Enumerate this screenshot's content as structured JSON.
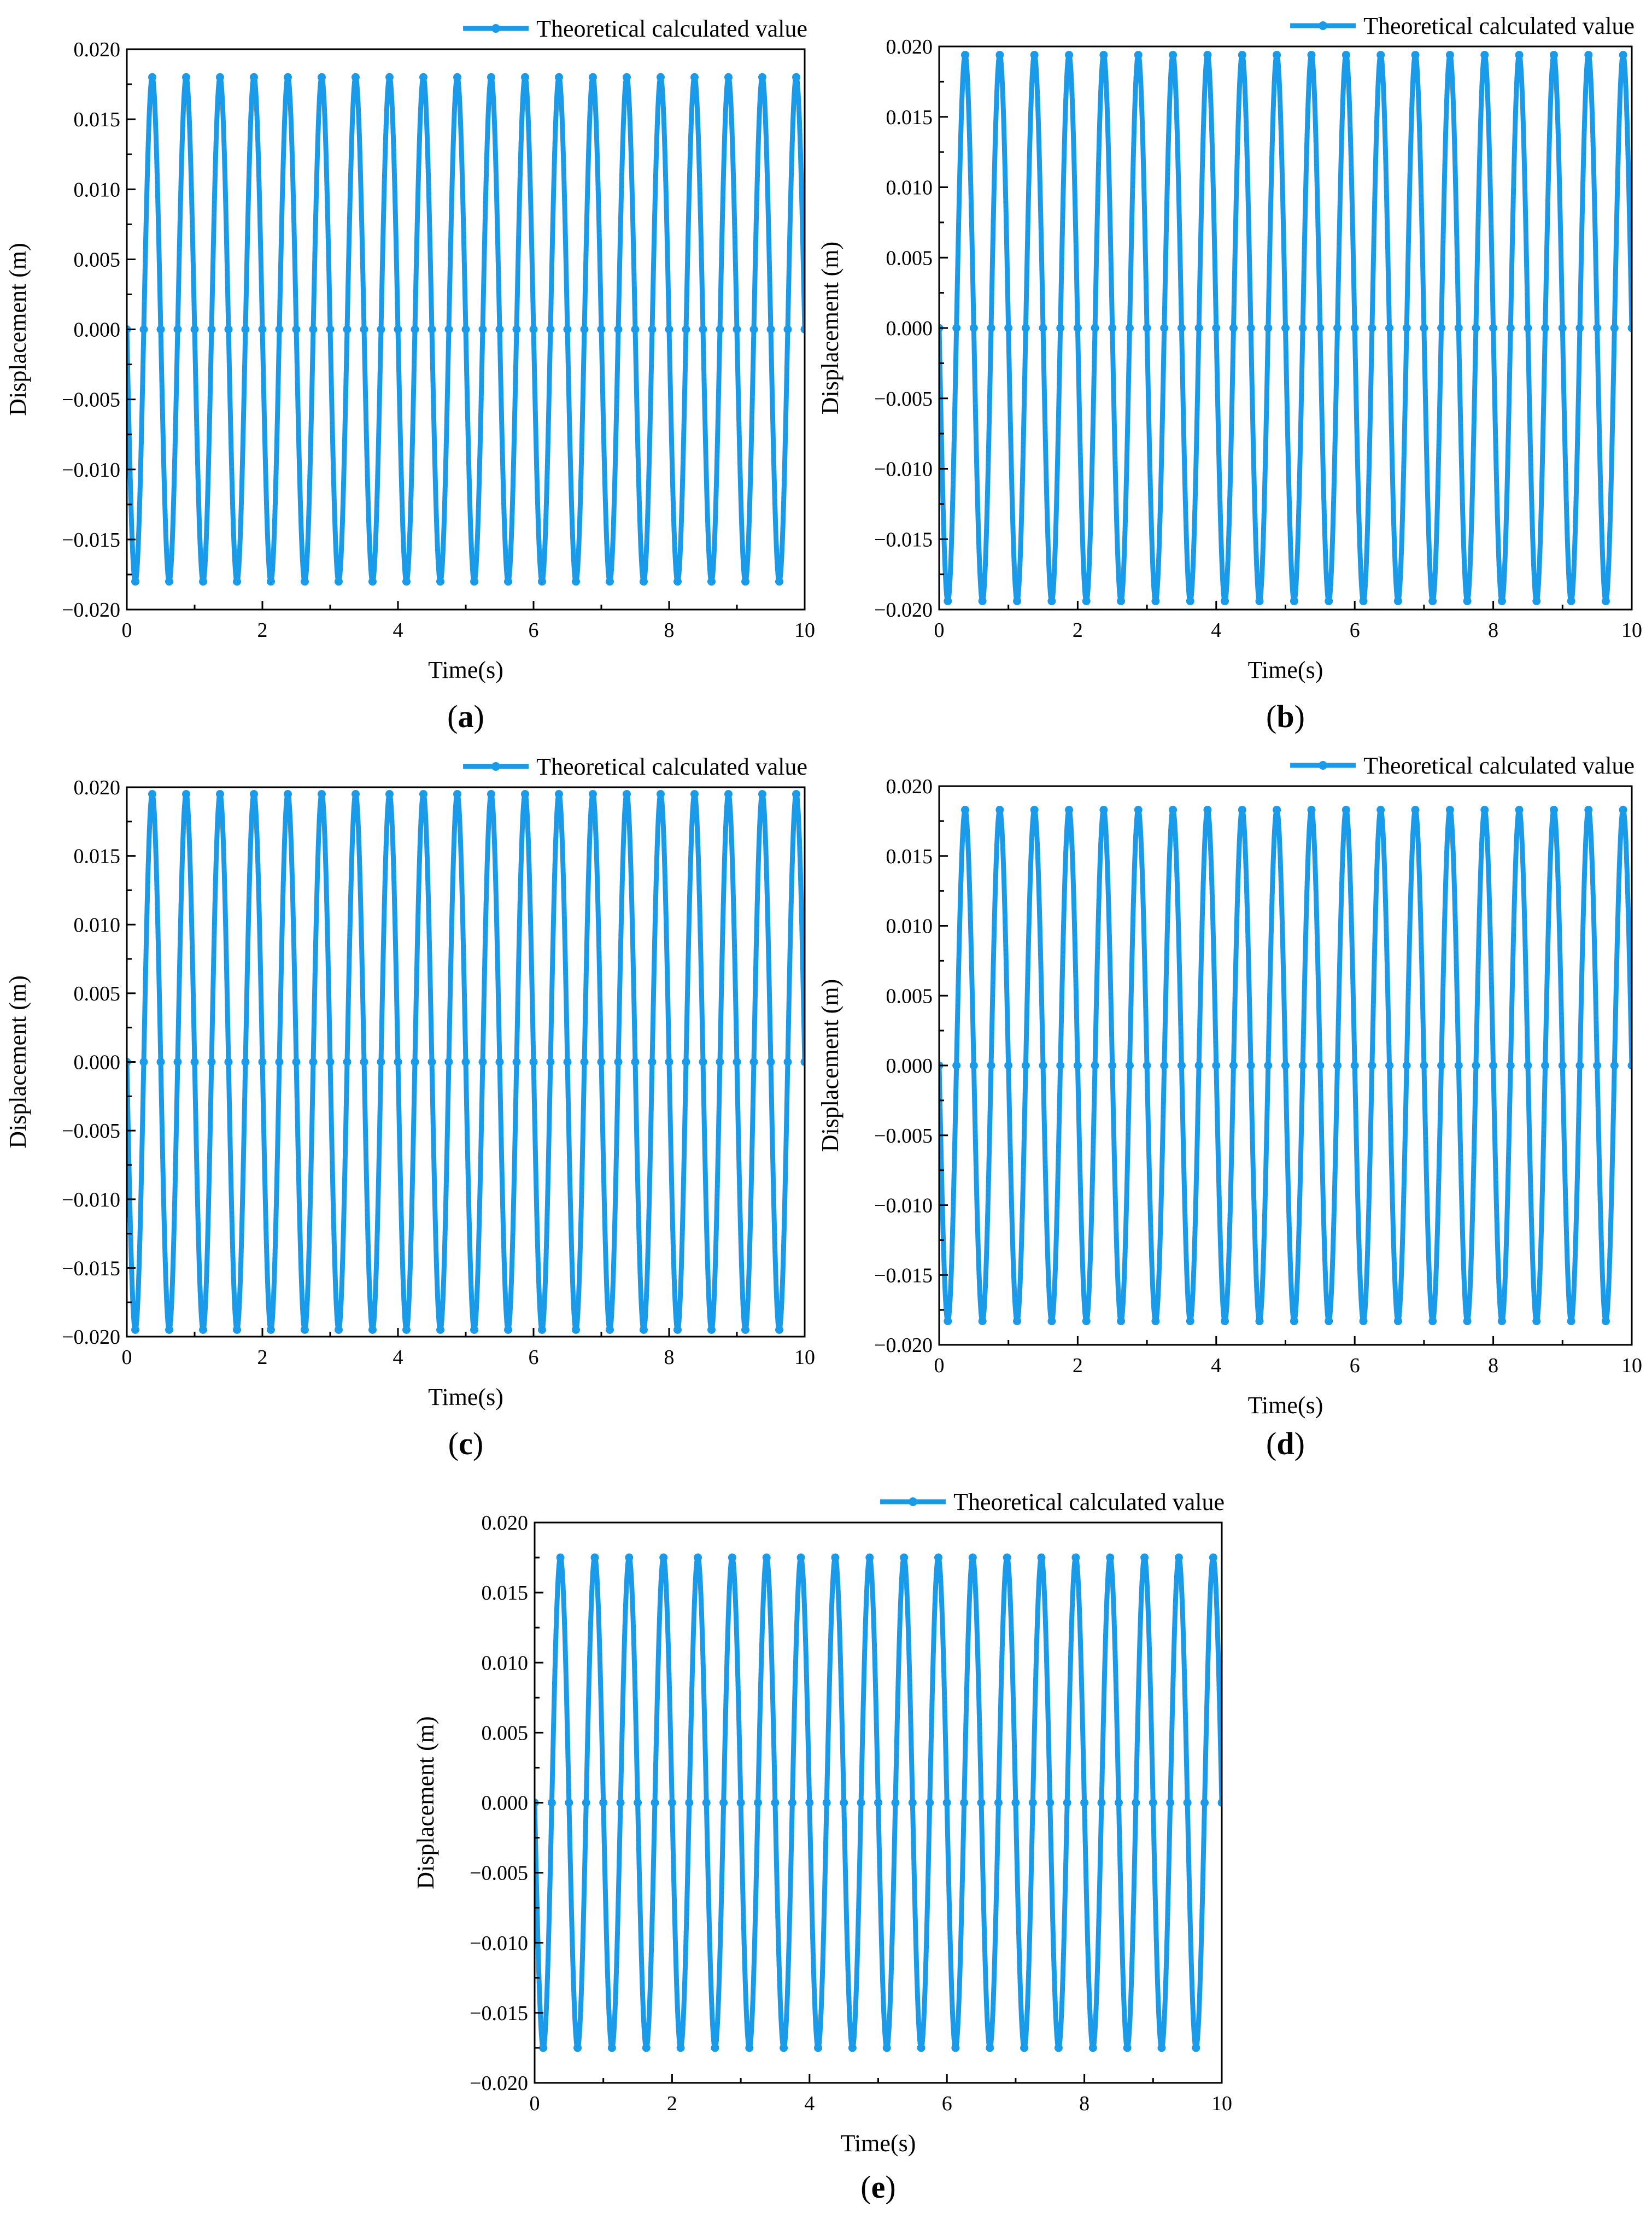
{
  "figure": {
    "series_color": "#1a9bea",
    "axis_color": "#000000"
  },
  "chart_data": [
    {
      "panel": "a",
      "caption_open": "(",
      "caption_letter": "a",
      "caption_close": ")",
      "type": "line",
      "xlabel": "Time(s)",
      "ylabel": "Displacement (m)",
      "xlim": [
        0,
        10
      ],
      "ylim": [
        -0.02,
        0.02
      ],
      "xticks": [
        0,
        2,
        4,
        6,
        8,
        10
      ],
      "xtick_labels": [
        "0",
        "2",
        "4",
        "6",
        "8",
        "10"
      ],
      "yticks": [
        -0.02,
        -0.015,
        -0.01,
        -0.005,
        0,
        0.005,
        0.01,
        0.015,
        0.02
      ],
      "ytick_labels": [
        "−0.020",
        "−0.015",
        "−0.010",
        "−0.005",
        "0.000",
        "0.005",
        "0.010",
        "0.015",
        "0.020"
      ],
      "legend": "top-right",
      "grid": false,
      "series": [
        {
          "name": "Theoretical calculated value",
          "amplitude": 0.018,
          "period": 0.5,
          "t0": 0.125,
          "markers": "every quarter period (peaks, troughs, zero crossings)"
        }
      ]
    },
    {
      "panel": "b",
      "caption_open": "(",
      "caption_letter": "b",
      "caption_close": ")",
      "type": "line",
      "xlabel": "Time(s)",
      "ylabel": "Displacement (m)",
      "xlim": [
        0,
        10
      ],
      "ylim": [
        -0.02,
        0.02
      ],
      "xticks": [
        0,
        2,
        4,
        6,
        8,
        10
      ],
      "xtick_labels": [
        "0",
        "2",
        "4",
        "6",
        "8",
        "10"
      ],
      "yticks": [
        -0.02,
        -0.015,
        -0.01,
        -0.005,
        0,
        0.005,
        0.01,
        0.015,
        0.02
      ],
      "ytick_labels": [
        "−0.020",
        "−0.015",
        "−0.010",
        "−0.005",
        "0.000",
        "0.005",
        "0.010",
        "0.015",
        "0.020"
      ],
      "legend": "top-right",
      "grid": false,
      "series": [
        {
          "name": "Theoretical calculated value",
          "amplitude": 0.0194,
          "period": 0.5,
          "t0": 0.125,
          "markers": "every quarter period (peaks, troughs, zero crossings)"
        }
      ]
    },
    {
      "panel": "c",
      "caption_open": "(",
      "caption_letter": "c",
      "caption_close": ")",
      "type": "line",
      "xlabel": "Time(s)",
      "ylabel": "Displacement (m)",
      "xlim": [
        0,
        10
      ],
      "ylim": [
        -0.02,
        0.02
      ],
      "xticks": [
        0,
        2,
        4,
        6,
        8,
        10
      ],
      "xtick_labels": [
        "0",
        "2",
        "4",
        "6",
        "8",
        "10"
      ],
      "yticks": [
        -0.02,
        -0.015,
        -0.01,
        -0.005,
        0,
        0.005,
        0.01,
        0.015,
        0.02
      ],
      "ytick_labels": [
        "−0.020",
        "−0.015",
        "−0.010",
        "−0.005",
        "0.000",
        "0.005",
        "0.010",
        "0.015",
        "0.020"
      ],
      "legend": "top-right",
      "grid": false,
      "series": [
        {
          "name": "Theoretical calculated value",
          "amplitude": 0.0195,
          "period": 0.5,
          "t0": 0.125,
          "markers": "every quarter period (peaks, troughs, zero crossings)"
        }
      ]
    },
    {
      "panel": "d",
      "caption_open": "(",
      "caption_letter": "d",
      "caption_close": ")",
      "type": "line",
      "xlabel": "Time(s)",
      "ylabel": "Displacement (m)",
      "xlim": [
        0,
        10
      ],
      "ylim": [
        -0.02,
        0.02
      ],
      "xticks": [
        0,
        2,
        4,
        6,
        8,
        10
      ],
      "xtick_labels": [
        "0",
        "2",
        "4",
        "6",
        "8",
        "10"
      ],
      "yticks": [
        -0.02,
        -0.015,
        -0.01,
        -0.005,
        0,
        0.005,
        0.01,
        0.015,
        0.02
      ],
      "ytick_labels": [
        "−0.020",
        "−0.015",
        "−0.010",
        "−0.005",
        "0.000",
        "0.005",
        "0.010",
        "0.015",
        "0.020"
      ],
      "legend": "top-right",
      "grid": false,
      "series": [
        {
          "name": "Theoretical calculated value",
          "amplitude": 0.0183,
          "period": 0.5,
          "t0": 0.125,
          "markers": "every quarter period (peaks, troughs, zero crossings)"
        }
      ]
    },
    {
      "panel": "e",
      "caption_open": "(",
      "caption_letter": "e",
      "caption_close": ")",
      "type": "line",
      "xlabel": "Time(s)",
      "ylabel": "Displacement (m)",
      "xlim": [
        0,
        10
      ],
      "ylim": [
        -0.02,
        0.02
      ],
      "xticks": [
        0,
        2,
        4,
        6,
        8,
        10
      ],
      "xtick_labels": [
        "0",
        "2",
        "4",
        "6",
        "8",
        "10"
      ],
      "yticks": [
        -0.02,
        -0.015,
        -0.01,
        -0.005,
        0,
        0.005,
        0.01,
        0.015,
        0.02
      ],
      "ytick_labels": [
        "−0.020",
        "−0.015",
        "−0.010",
        "−0.005",
        "0.000",
        "0.005",
        "0.010",
        "0.015",
        "0.020"
      ],
      "legend": "top-right",
      "grid": false,
      "series": [
        {
          "name": "Theoretical calculated value",
          "amplitude": 0.0175,
          "period": 0.5,
          "t0": 0.125,
          "markers": "every quarter period (peaks, troughs, zero crossings)"
        }
      ]
    }
  ]
}
